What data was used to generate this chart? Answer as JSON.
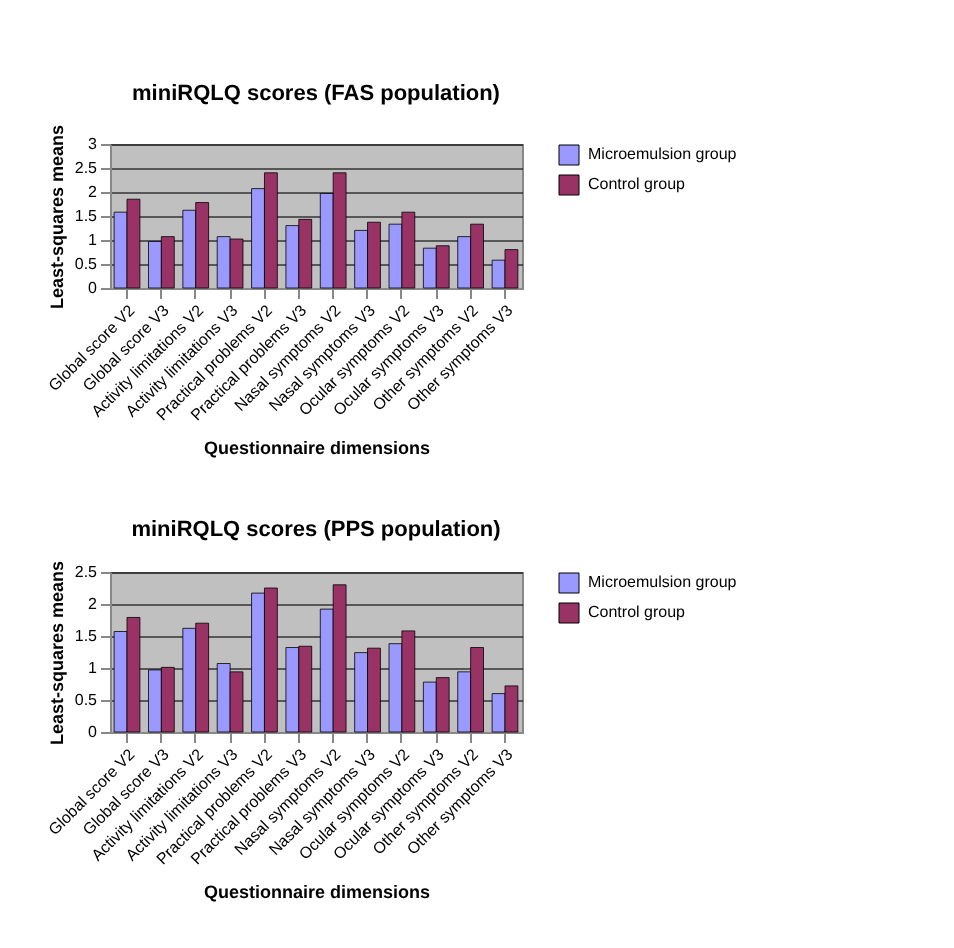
{
  "chart_data": [
    {
      "type": "bar",
      "title": "miniRQLQ scores (FAS population)",
      "xlabel": "Questionnaire dimensions",
      "ylabel": "Least-squares means",
      "categories": [
        "Global score V2",
        "Global score V3",
        "Activity limitations V2",
        "Activity limitations V3",
        "Practical problems V2",
        "Practical problems V3",
        "Nasal symptoms V2",
        "Nasal symptoms V3",
        "Ocular symptoms V2",
        "Ocular symptoms V3",
        "Other symptoms V2",
        "Other symptoms V3"
      ],
      "series": [
        {
          "name": "Microemulsion group",
          "color": "#9999ff",
          "values": [
            1.58,
            0.97,
            1.62,
            1.07,
            2.07,
            1.3,
            1.97,
            1.2,
            1.33,
            0.83,
            1.07,
            0.58
          ]
        },
        {
          "name": "Control group",
          "color": "#993366",
          "values": [
            1.85,
            1.07,
            1.78,
            1.02,
            2.4,
            1.43,
            2.4,
            1.37,
            1.58,
            0.88,
            1.33,
            0.8
          ]
        }
      ],
      "ylim": [
        0,
        3
      ],
      "yticks": [
        0,
        0.5,
        1,
        1.5,
        2,
        2.5,
        3
      ],
      "grid": "y",
      "legend": "right"
    },
    {
      "type": "bar",
      "title": "miniRQLQ scores (PPS population)",
      "xlabel": "Questionnaire dimensions",
      "ylabel": "Least-squares means",
      "categories": [
        "Global score V2",
        "Global score V3",
        "Activity limitations V2",
        "Activity limitations V3",
        "Practical problems V2",
        "Practical problems V3",
        "Nasal symptoms V2",
        "Nasal symptoms V3",
        "Ocular symptoms V2",
        "Ocular symptoms V3",
        "Other symptoms V2",
        "Other symptoms V3"
      ],
      "series": [
        {
          "name": "Microemulsion group",
          "color": "#9999ff",
          "values": [
            1.57,
            0.97,
            1.62,
            1.07,
            2.17,
            1.32,
            1.92,
            1.24,
            1.38,
            0.78,
            0.94,
            0.6
          ]
        },
        {
          "name": "Control group",
          "color": "#993366",
          "values": [
            1.79,
            1.01,
            1.7,
            0.94,
            2.25,
            1.34,
            2.3,
            1.31,
            1.58,
            0.85,
            1.32,
            0.72
          ]
        }
      ],
      "ylim": [
        0,
        2.5
      ],
      "yticks": [
        0,
        0.5,
        1,
        1.5,
        2,
        2.5
      ],
      "grid": "y",
      "legend": "right"
    }
  ]
}
